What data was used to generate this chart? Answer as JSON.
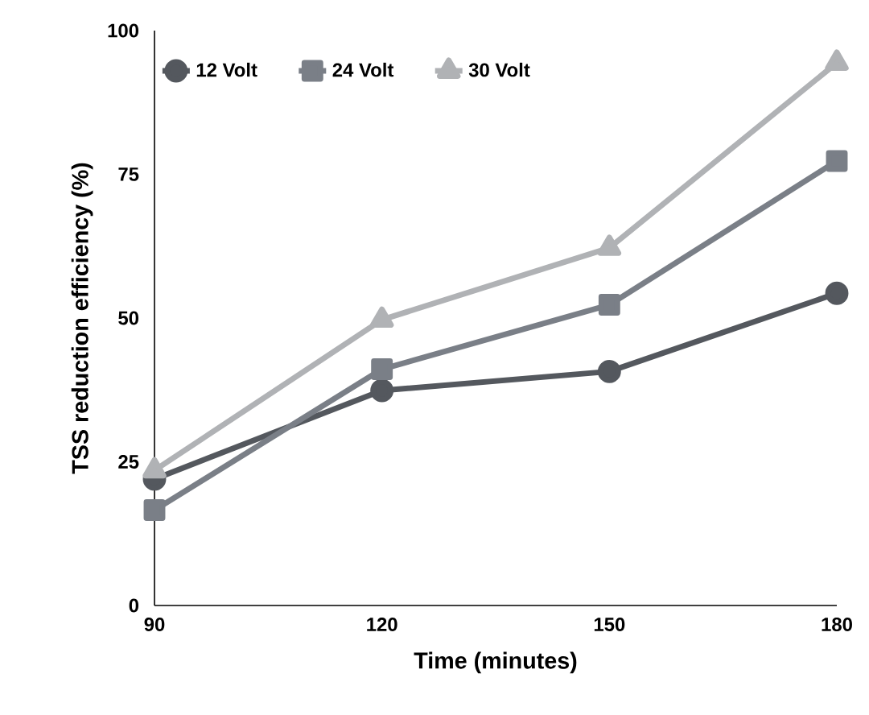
{
  "chart_data": {
    "type": "line",
    "xlabel": "Time (minutes)",
    "ylabel": "TSS reduction efficiency (%)",
    "x": [
      90,
      120,
      150,
      180
    ],
    "xlim": [
      90,
      180
    ],
    "xticks": [
      90,
      120,
      150,
      180
    ],
    "ylim": [
      0,
      100
    ],
    "yticks": [
      0,
      25,
      50,
      75,
      100
    ],
    "grid": false,
    "legend": "top",
    "series": [
      {
        "name": "12 Volt",
        "color": "#54585e",
        "marker": "circle",
        "values": [
          22,
          37.4,
          40.7,
          54.3
        ]
      },
      {
        "name": "24 Volt",
        "color": "#7a7f87",
        "marker": "square",
        "values": [
          16.6,
          41.1,
          52.3,
          77.3
        ]
      },
      {
        "name": "30 Volt",
        "color": "#b0b2b5",
        "marker": "triangle",
        "values": [
          23.5,
          49.7,
          62.2,
          94.4
        ]
      }
    ]
  }
}
